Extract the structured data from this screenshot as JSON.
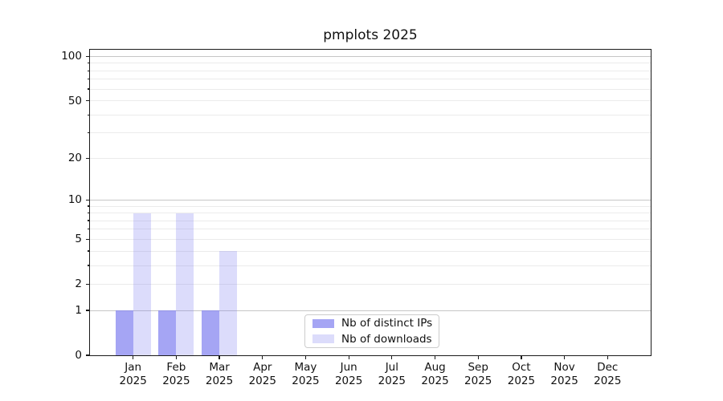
{
  "chart_data": {
    "type": "bar",
    "title": "pmplots 2025",
    "categories": [
      "Jan",
      "Feb",
      "Mar",
      "Apr",
      "May",
      "Jun",
      "Jul",
      "Aug",
      "Sep",
      "Oct",
      "Nov",
      "Dec"
    ],
    "category_year": "2025",
    "series": [
      {
        "name": "Nb of distinct IPs",
        "color": "#8282f0",
        "alpha": 0.72,
        "values": [
          1,
          1,
          1,
          0,
          0,
          0,
          0,
          0,
          0,
          0,
          0,
          0
        ]
      },
      {
        "name": "Nb of downloads",
        "color": "#8282f0",
        "alpha": 0.28,
        "values": [
          8,
          8,
          4,
          0,
          0,
          0,
          0,
          0,
          0,
          0,
          0,
          0
        ]
      }
    ],
    "y_scale": "log1p",
    "y_ticks": [
      0,
      1,
      2,
      5,
      10,
      20,
      50,
      100
    ],
    "y_major_grid": [
      1,
      10,
      100
    ],
    "y_minor_ticks": [
      3,
      4,
      6,
      7,
      8,
      9,
      30,
      40,
      60,
      70,
      80,
      90
    ],
    "ylim": [
      0,
      111
    ],
    "xlabel": "",
    "ylabel": "",
    "grid": true,
    "legend_position": "bottom-center"
  },
  "colors": {
    "bar_ips_on_white": "#a5a5f4",
    "bar_downloads_on_white": "#dcdcfb",
    "grid_major": "#c6c6c6",
    "grid_minor": "#ebebeb",
    "spine": "#1a1a1a",
    "background": "#ffffff"
  }
}
